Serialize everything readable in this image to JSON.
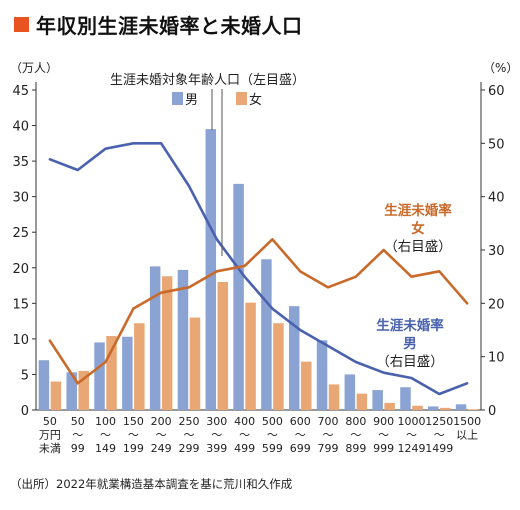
{
  "title": "年収別生涯未婚率と未婚人口",
  "source": "（出所）2022年就業構造基本調査を基に荒川和久作成",
  "colors": {
    "accent": "#e8531f",
    "male_bar": "#8aa3d3",
    "female_bar": "#e8a774",
    "male_line": "#4a62ad",
    "female_line": "#c96a2a"
  },
  "chart_data": {
    "type": "bar+line",
    "left_axis": {
      "unit": "（万人）",
      "ylim": [
        0,
        45
      ],
      "ticks": [
        "0",
        "5",
        "10",
        "15",
        "20",
        "25",
        "30",
        "35",
        "40",
        "45"
      ]
    },
    "right_axis": {
      "unit": "（%）",
      "ylim": [
        0,
        60
      ],
      "ticks": [
        "0",
        "10",
        "20",
        "30",
        "40",
        "50",
        "60"
      ]
    },
    "categories": [
      [
        "50",
        "万円",
        "未満"
      ],
      [
        "50",
        "〜",
        "99"
      ],
      [
        "100",
        "〜",
        "149"
      ],
      [
        "150",
        "〜",
        "199"
      ],
      [
        "200",
        "〜",
        "249"
      ],
      [
        "250",
        "〜",
        "299"
      ],
      [
        "300",
        "〜",
        "399"
      ],
      [
        "400",
        "〜",
        "499"
      ],
      [
        "500",
        "〜",
        "599"
      ],
      [
        "600",
        "〜",
        "699"
      ],
      [
        "700",
        "〜",
        "799"
      ],
      [
        "800",
        "〜",
        "899"
      ],
      [
        "900",
        "〜",
        "999"
      ],
      [
        "1000",
        "〜",
        "1249"
      ],
      [
        "1250",
        "〜",
        "1499"
      ],
      [
        "1500",
        "以上"
      ]
    ],
    "bar_legend": {
      "title": "生涯未婚対象年齢人口（左目盛）",
      "male_label": "男",
      "female_label": "女"
    },
    "bar_series": [
      {
        "name": "男",
        "values": [
          7.0,
          5.3,
          9.5,
          10.3,
          20.2,
          19.7,
          39.5,
          31.8,
          21.2,
          14.6,
          9.8,
          5.0,
          2.8,
          3.2,
          0.5,
          0.8
        ]
      },
      {
        "name": "女",
        "values": [
          4.0,
          5.5,
          10.4,
          12.2,
          18.8,
          13.0,
          18.0,
          15.1,
          12.2,
          6.8,
          3.6,
          2.3,
          1.0,
          0.6,
          0.3,
          0.1
        ]
      }
    ],
    "line_series": [
      {
        "name": "生涯未婚率 男（右目盛）",
        "label_lines": [
          "生涯未婚率",
          "男",
          "（右目盛）"
        ],
        "values": [
          47,
          45,
          49,
          50,
          50,
          42,
          32,
          25,
          19,
          15,
          12,
          9,
          7,
          6,
          3,
          5
        ]
      },
      {
        "name": "生涯未婚率 女（右目盛）",
        "label_lines": [
          "生涯未婚率",
          "女",
          "（右目盛）"
        ],
        "values": [
          13,
          5,
          9,
          19,
          22,
          23,
          26,
          27,
          32,
          26,
          23,
          25,
          30,
          25,
          26,
          20
        ]
      }
    ],
    "grid": false,
    "legend_position": "top-center"
  }
}
